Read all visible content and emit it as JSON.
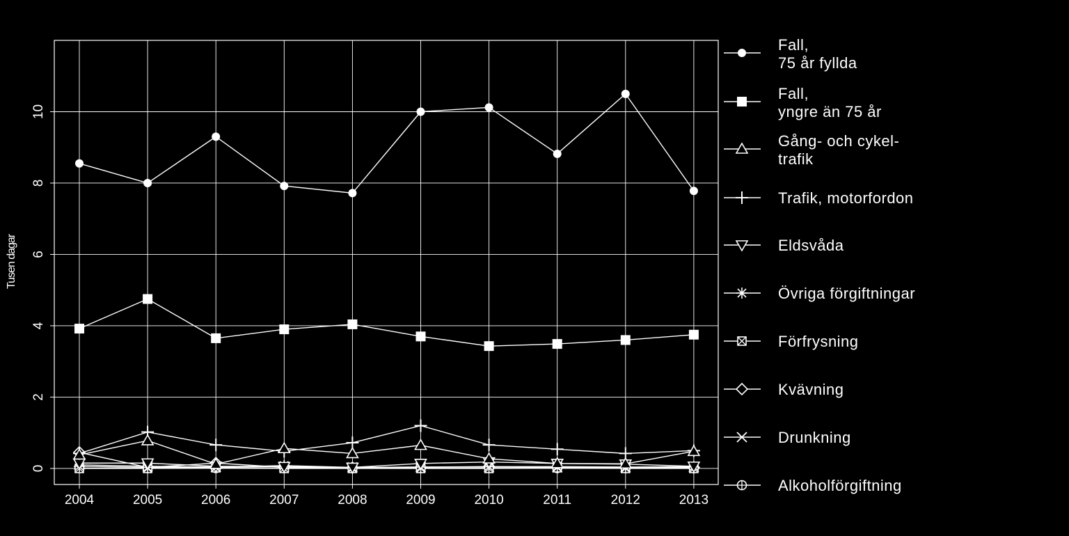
{
  "chart_data": {
    "type": "line",
    "title": "",
    "xlabel": "",
    "ylabel": "Tusen dagar",
    "x": [
      "2004",
      "2005",
      "2006",
      "2007",
      "2008",
      "2009",
      "2010",
      "2011",
      "2012",
      "2013"
    ],
    "y_ticks": [
      "0",
      "2",
      "4",
      "6",
      "8",
      "10"
    ],
    "ylim": [
      -0.45,
      12.0
    ],
    "grid": true,
    "legend_position": "right",
    "colors": {
      "background": "#000000",
      "foreground": "#ffffff"
    },
    "series": [
      {
        "name": "Fall,\n75 år fyllda",
        "marker": "circle",
        "values": [
          8.55,
          8.0,
          9.3,
          7.92,
          7.72,
          10.0,
          10.12,
          8.82,
          10.5,
          7.78
        ]
      },
      {
        "name": "Fall,\nyngre än 75 år",
        "marker": "square",
        "values": [
          3.92,
          4.75,
          3.65,
          3.9,
          4.04,
          3.7,
          3.43,
          3.49,
          3.6,
          3.75
        ]
      },
      {
        "name": "Gång- och cykel-\ntrafik",
        "marker": "triangle-up",
        "values": [
          0.38,
          0.78,
          0.12,
          0.56,
          0.42,
          0.65,
          0.27,
          0.14,
          0.13,
          0.48
        ]
      },
      {
        "name": "Trafik, motorfordon",
        "marker": "plus",
        "values": [
          0.42,
          1.02,
          0.66,
          0.48,
          0.72,
          1.2,
          0.66,
          0.54,
          0.42,
          0.5
        ]
      },
      {
        "name": "Eldsvåda",
        "marker": "triangle-down",
        "values": [
          0.15,
          0.15,
          0.06,
          0.05,
          0.03,
          0.14,
          0.18,
          0.14,
          0.12,
          0.06
        ]
      },
      {
        "name": "Övriga förgiftningar",
        "marker": "asterisk",
        "values": [
          0.06,
          0.03,
          0.04,
          0.08,
          0.03,
          0.04,
          0.05,
          0.05,
          0.04,
          0.05
        ]
      },
      {
        "name": "Förfrysning",
        "marker": "square-x",
        "values": [
          0.0,
          0.0,
          0.02,
          0.0,
          0.0,
          0.0,
          0.0,
          0.02,
          0.0,
          0.0
        ]
      },
      {
        "name": "Kvävning",
        "marker": "diamond",
        "values": [
          0.45,
          0.03,
          0.15,
          0.03,
          0.02,
          0.03,
          0.05,
          0.03,
          0.03,
          0.02
        ]
      },
      {
        "name": "Drunkning",
        "marker": "x",
        "values": [
          0.1,
          0.06,
          0.04,
          0.05,
          0.03,
          0.04,
          0.04,
          0.03,
          0.03,
          0.04
        ]
      },
      {
        "name": "Alkoholförgiftning",
        "marker": "circle-plus",
        "values": [
          0.01,
          0.01,
          0.01,
          0.01,
          0.01,
          0.01,
          0.01,
          0.01,
          0.01,
          0.01
        ]
      }
    ]
  }
}
